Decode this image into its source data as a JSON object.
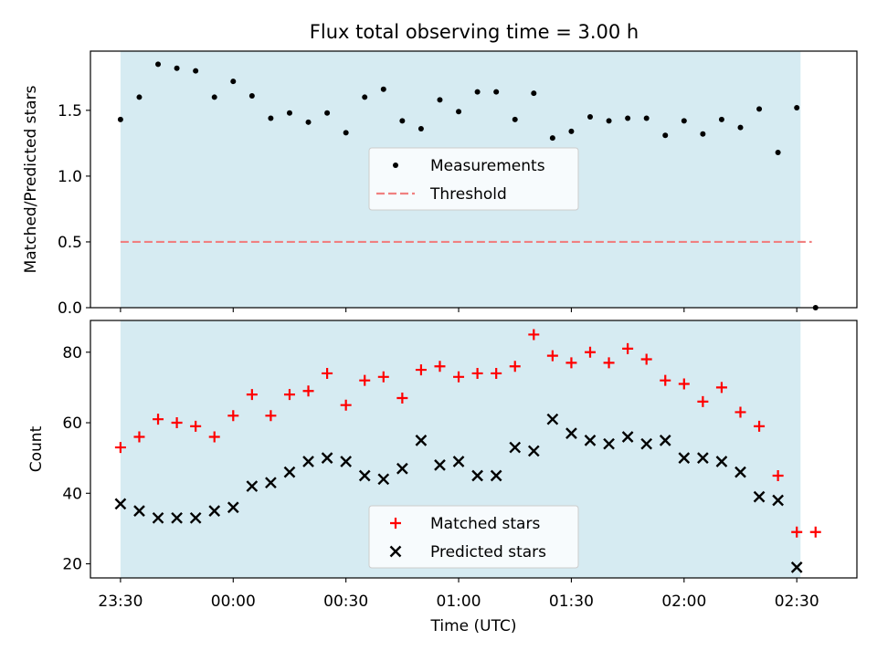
{
  "figure": {
    "title": "Flux total observing time = 3.00 h"
  },
  "colors": {
    "shade": "#add8e6",
    "measurement": "#000000",
    "threshold": "#f08080",
    "matched": "#ff0000",
    "predicted": "#000000"
  },
  "chart_data": [
    {
      "type": "scatter",
      "title": "Flux total observing time = 3.00 h",
      "xlabel": "",
      "ylabel": "Matched/Predicted stars",
      "ylim": [
        0,
        1.95
      ],
      "yticks": [
        0.0,
        0.5,
        1.0,
        1.5
      ],
      "ytick_labels": [
        "0.0",
        "0.5",
        "1.0",
        "1.5"
      ],
      "xlim": [
        "23:22",
        "02:46"
      ],
      "xticks": [
        "23:30",
        "00:00",
        "00:30",
        "01:00",
        "01:30",
        "02:00",
        "02:30"
      ],
      "observing_window": [
        "23:30",
        "02:31"
      ],
      "legend": {
        "position": "center",
        "entries": [
          "Measurements",
          "Threshold"
        ]
      },
      "grid": false,
      "threshold": {
        "name": "Threshold",
        "y": 0.5,
        "x": [
          "23:30",
          "02:34"
        ],
        "style": "dashed"
      },
      "series": [
        {
          "name": "Measurements",
          "marker": "dot",
          "x": [
            "23:30",
            "23:35",
            "23:40",
            "23:45",
            "23:50",
            "23:55",
            "00:00",
            "00:05",
            "00:10",
            "00:15",
            "00:20",
            "00:25",
            "00:30",
            "00:35",
            "00:40",
            "00:45",
            "00:50",
            "00:55",
            "01:00",
            "01:05",
            "01:10",
            "01:15",
            "01:20",
            "01:25",
            "01:30",
            "01:35",
            "01:40",
            "01:45",
            "01:50",
            "01:55",
            "02:00",
            "02:05",
            "02:10",
            "02:15",
            "02:20",
            "02:25",
            "02:30",
            "02:35"
          ],
          "values": [
            1.43,
            1.6,
            1.85,
            1.82,
            1.8,
            1.6,
            1.72,
            1.61,
            1.44,
            1.48,
            1.41,
            1.48,
            1.33,
            1.6,
            1.66,
            1.42,
            1.36,
            1.58,
            1.49,
            1.64,
            1.64,
            1.43,
            1.63,
            1.29,
            1.34,
            1.45,
            1.42,
            1.44,
            1.44,
            1.31,
            1.42,
            1.32,
            1.43,
            1.37,
            1.51,
            1.18,
            1.52,
            0.0
          ]
        }
      ]
    },
    {
      "type": "scatter",
      "xlabel": "Time (UTC)",
      "ylabel": "Count",
      "ylim": [
        16,
        89
      ],
      "yticks": [
        20,
        40,
        60,
        80
      ],
      "ytick_labels": [
        "20",
        "40",
        "60",
        "80"
      ],
      "xlim": [
        "23:22",
        "02:46"
      ],
      "xticks": [
        "23:30",
        "00:00",
        "00:30",
        "01:00",
        "01:30",
        "02:00",
        "02:30"
      ],
      "xtick_labels": [
        "23:30",
        "00:00",
        "00:30",
        "01:00",
        "01:30",
        "02:00",
        "02:30"
      ],
      "observing_window": [
        "23:30",
        "02:31"
      ],
      "legend": {
        "position": "lower center",
        "entries": [
          "Matched stars",
          "Predicted stars"
        ]
      },
      "grid": false,
      "series": [
        {
          "name": "Matched stars",
          "marker": "plus",
          "x": [
            "23:30",
            "23:35",
            "23:40",
            "23:45",
            "23:50",
            "23:55",
            "00:00",
            "00:05",
            "00:10",
            "00:15",
            "00:20",
            "00:25",
            "00:30",
            "00:35",
            "00:40",
            "00:45",
            "00:50",
            "00:55",
            "01:00",
            "01:05",
            "01:10",
            "01:15",
            "01:20",
            "01:25",
            "01:30",
            "01:35",
            "01:40",
            "01:45",
            "01:50",
            "01:55",
            "02:00",
            "02:05",
            "02:10",
            "02:15",
            "02:20",
            "02:25",
            "02:30",
            "02:35"
          ],
          "values": [
            53,
            56,
            61,
            60,
            59,
            56,
            62,
            68,
            62,
            68,
            69,
            74,
            65,
            72,
            73,
            67,
            75,
            76,
            73,
            74,
            74,
            76,
            85,
            79,
            77,
            80,
            77,
            81,
            78,
            72,
            71,
            66,
            70,
            63,
            59,
            45,
            29,
            29
          ]
        },
        {
          "name": "Predicted stars",
          "marker": "x",
          "x": [
            "23:30",
            "23:35",
            "23:40",
            "23:45",
            "23:50",
            "23:55",
            "00:00",
            "00:05",
            "00:10",
            "00:15",
            "00:20",
            "00:25",
            "00:30",
            "00:35",
            "00:40",
            "00:45",
            "00:50",
            "00:55",
            "01:00",
            "01:05",
            "01:10",
            "01:15",
            "01:20",
            "01:25",
            "01:30",
            "01:35",
            "01:40",
            "01:45",
            "01:50",
            "01:55",
            "02:00",
            "02:05",
            "02:10",
            "02:15",
            "02:20",
            "02:25",
            "02:30"
          ],
          "values": [
            37,
            35,
            33,
            33,
            33,
            35,
            36,
            42,
            43,
            46,
            49,
            50,
            49,
            45,
            44,
            47,
            55,
            48,
            49,
            45,
            45,
            53,
            52,
            61,
            57,
            55,
            54,
            56,
            54,
            55,
            50,
            50,
            49,
            46,
            39,
            38,
            19
          ]
        }
      ]
    }
  ]
}
